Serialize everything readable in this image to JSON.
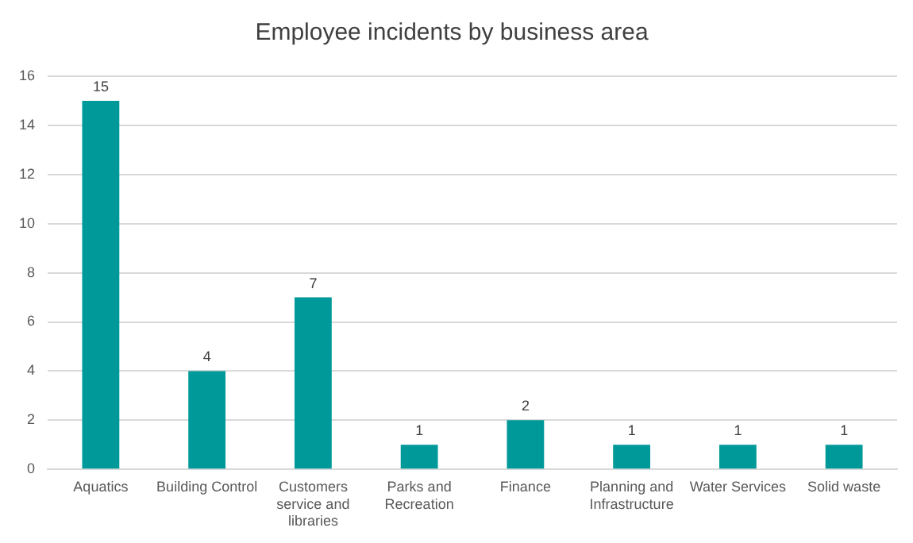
{
  "chart_data": {
    "type": "bar",
    "title": "Employee incidents by business area",
    "categories": [
      "Aquatics",
      "Building Control",
      "Customers service and libraries",
      "Parks and Recreation",
      "Finance",
      "Planning and Infrastructure",
      "Water Services",
      "Solid waste"
    ],
    "values": [
      15,
      4,
      7,
      1,
      2,
      1,
      1,
      1
    ],
    "color": "#009999",
    "ylim": [
      0,
      16
    ],
    "yticks": [
      0,
      2,
      4,
      6,
      8,
      10,
      12,
      14,
      16
    ],
    "grid": "y",
    "data_labels": true,
    "legend": false
  }
}
